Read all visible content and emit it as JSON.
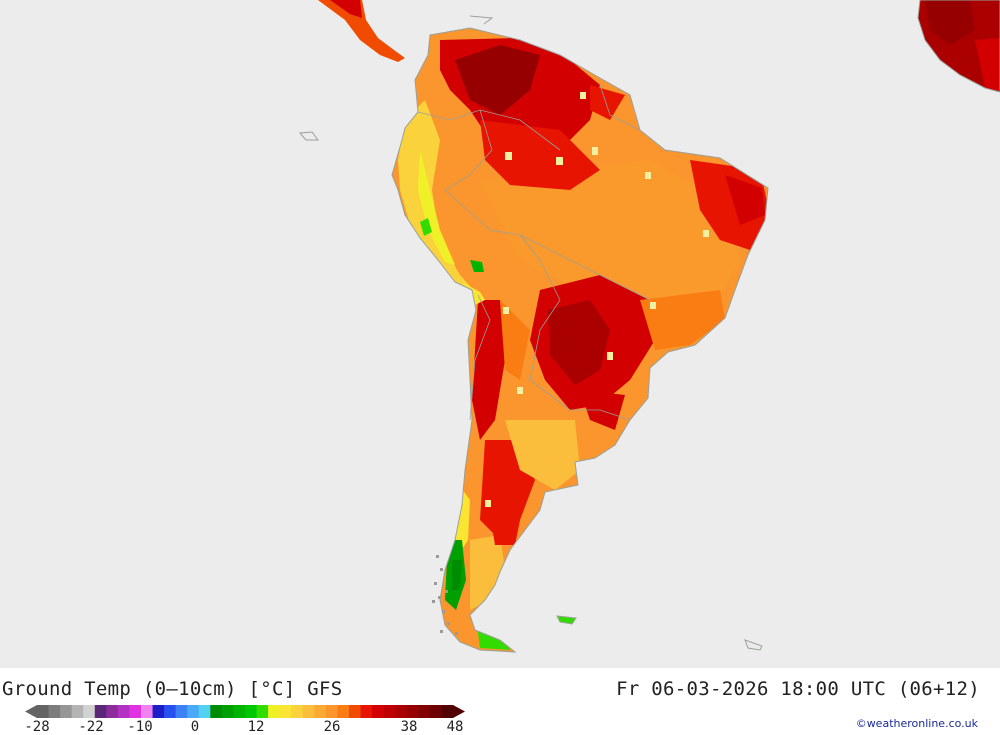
{
  "map": {
    "title": "Ground Temp (0–10cm) [°C] GFS",
    "datetime": "Fr 06-03-2026 18:00 UTC (06+12)",
    "credit": "©weatheronline.co.uk",
    "region": "South America"
  },
  "legend": {
    "ticks": [
      "-28",
      "-22",
      "-10",
      "0",
      "12",
      "26",
      "38",
      "48"
    ],
    "colors": [
      "#646464",
      "#7d7d7d",
      "#969696",
      "#b4b4b4",
      "#d2d2d2",
      "#5a2878",
      "#8c2d9b",
      "#b432c3",
      "#e132e1",
      "#f082f0",
      "#1e1ec8",
      "#2850f0",
      "#3c82f5",
      "#4baaf5",
      "#50d2f0",
      "#008c00",
      "#00a000",
      "#00b400",
      "#00c800",
      "#32dc00",
      "#f0f028",
      "#fae632",
      "#fad23c",
      "#fabe3c",
      "#faaa32",
      "#fa962d",
      "#fa7d14",
      "#f04b00",
      "#e61400",
      "#d20000",
      "#be0000",
      "#aa0000",
      "#960000",
      "#820000",
      "#6e0000",
      "#500000"
    ]
  }
}
